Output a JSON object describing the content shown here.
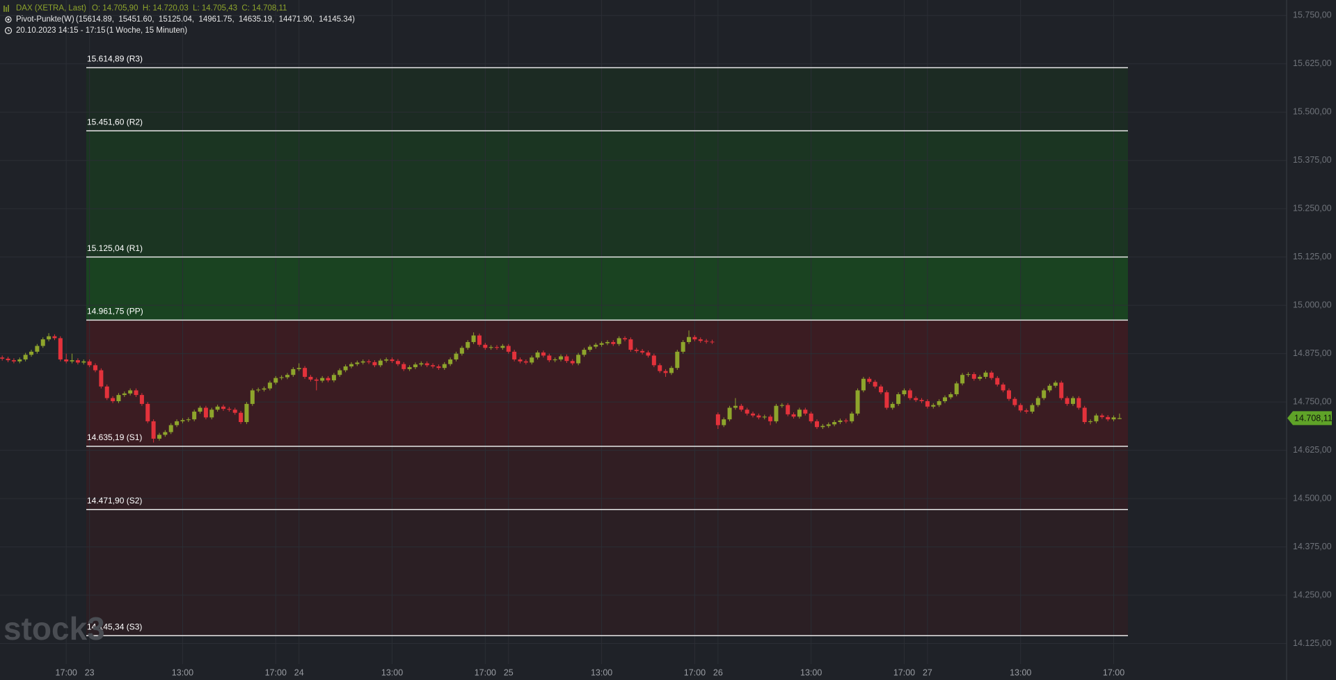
{
  "chart_data": {
    "type": "candlestick",
    "watermark": "stock3",
    "legend": {
      "symbol": "DAX (XETRA, Last)",
      "ohlc": "O: 14.705,90  H: 14.720,03  L: 14.705,43  C: 14.708,11",
      "indicator": "Pivot-Punkte(W)",
      "indicator_values": "(15614.89,  15451.60,  15125.04,  14961.75,  14635.19,  14471.90,  14145.34)",
      "period": "20.10.2023 14:15 - 17:15",
      "period_note": "(1 Woche, 15 Minuten)"
    },
    "up_color": "#8ea52c",
    "down_color": "#e3323b",
    "grid": true,
    "ylim": [
      14072,
      15790
    ],
    "yticks": [
      {
        "value": 14125,
        "label": "14.125,00"
      },
      {
        "value": 14250,
        "label": "14.250,00"
      },
      {
        "value": 14375,
        "label": "14.375,00"
      },
      {
        "value": 14500,
        "label": "14.500,00"
      },
      {
        "value": 14625,
        "label": "14.625,00"
      },
      {
        "value": 14750,
        "label": "14.750,00"
      },
      {
        "value": 14875,
        "label": "14.875,00"
      },
      {
        "value": 15000,
        "label": "15.000,00"
      },
      {
        "value": 15125,
        "label": "15.125,00"
      },
      {
        "value": 15250,
        "label": "15.250,00"
      },
      {
        "value": 15375,
        "label": "15.375,00"
      },
      {
        "value": 15500,
        "label": "15.500,00"
      },
      {
        "value": 15625,
        "label": "15.625,00"
      },
      {
        "value": 15750,
        "label": "15.750,00"
      }
    ],
    "last_price": {
      "value": 14708.11,
      "label": "14.708,11",
      "color": "#5fa328"
    },
    "pivots": [
      {
        "value": 15614.89,
        "label": "15.614,89 (R3)",
        "fill": "#1c2b23"
      },
      {
        "value": 15451.6,
        "label": "15.451,60 (R2)",
        "fill": "#1b3522"
      },
      {
        "value": 15125.04,
        "label": "15.125,04 (R1)",
        "fill": "#1a4321"
      },
      {
        "value": 14961.75,
        "label": "14.961,75 (PP)",
        "fill": "#3b1c22"
      },
      {
        "value": 14635.19,
        "label": "14.635,19 (S1)",
        "fill": "#311e23"
      },
      {
        "value": 14471.9,
        "label": "14.471,90 (S2)",
        "fill": "#2b1f24"
      },
      {
        "value": 14145.34,
        "label": "14.145,34 (S3)",
        "fill": "#2b1f24"
      }
    ],
    "categories": [
      null,
      null,
      null,
      null,
      null,
      null,
      null,
      null,
      null,
      null,
      null,
      "17:00",
      null,
      null,
      null,
      "23",
      null,
      null,
      null,
      null,
      null,
      null,
      null,
      null,
      null,
      null,
      null,
      null,
      null,
      null,
      null,
      "13:00",
      null,
      null,
      null,
      null,
      null,
      null,
      null,
      null,
      null,
      null,
      null,
      null,
      null,
      null,
      null,
      "17:00",
      null,
      null,
      null,
      "24",
      null,
      null,
      null,
      null,
      null,
      null,
      null,
      null,
      null,
      null,
      null,
      null,
      null,
      null,
      null,
      "13:00",
      null,
      null,
      null,
      null,
      null,
      null,
      null,
      null,
      null,
      null,
      null,
      null,
      null,
      null,
      null,
      "17:00",
      null,
      null,
      null,
      "25",
      null,
      null,
      null,
      null,
      null,
      null,
      null,
      null,
      null,
      null,
      null,
      null,
      null,
      null,
      null,
      "13:00",
      null,
      null,
      null,
      null,
      null,
      null,
      null,
      null,
      null,
      null,
      null,
      null,
      null,
      null,
      null,
      "17:00",
      null,
      null,
      null,
      "26",
      null,
      null,
      null,
      null,
      null,
      null,
      null,
      null,
      null,
      null,
      null,
      null,
      null,
      null,
      null,
      "13:00",
      null,
      null,
      null,
      null,
      null,
      null,
      null,
      null,
      null,
      null,
      null,
      null,
      null,
      null,
      null,
      "17:00",
      null,
      null,
      null,
      "27",
      null,
      null,
      null,
      null,
      null,
      null,
      null,
      null,
      null,
      null,
      null,
      null,
      null,
      null,
      null,
      "13:00",
      null,
      null,
      null,
      null,
      null,
      null,
      null,
      null,
      null,
      null,
      null,
      null,
      null,
      null,
      null,
      "17:00",
      null
    ],
    "open": [
      14865,
      14862,
      14858,
      14855,
      14860,
      14872,
      14880,
      14895,
      14912,
      14920,
      14915,
      14860,
      14855,
      14858,
      14852,
      14855,
      14845,
      14832,
      14790,
      14760,
      14752,
      14768,
      14772,
      14780,
      14768,
      14745,
      14700,
      14655,
      14665,
      14672,
      14690,
      14700,
      14703,
      14705,
      14725,
      14735,
      14710,
      14730,
      14738,
      14732,
      14730,
      14722,
      14698,
      14745,
      14780,
      14782,
      14785,
      14800,
      14812,
      14814,
      14820,
      14835,
      14838,
      14815,
      14808,
      14805,
      14812,
      14806,
      14820,
      14832,
      14842,
      14848,
      14852,
      14855,
      14853,
      14845,
      14857,
      14860,
      14856,
      14848,
      14835,
      14840,
      14847,
      14850,
      14845,
      14842,
      14838,
      14848,
      14860,
      14875,
      14890,
      14905,
      14922,
      14898,
      14890,
      14892,
      14890,
      14895,
      14880,
      14860,
      14855,
      14852,
      14865,
      14878,
      14870,
      14858,
      14860,
      14868,
      14856,
      14850,
      14872,
      14885,
      14893,
      14898,
      14902,
      14905,
      14900,
      14915,
      14912,
      14885,
      14882,
      14878,
      14870,
      14845,
      14830,
      14825,
      14838,
      14880,
      14905,
      14918,
      14912,
      14908,
      14906,
      14718,
      14690,
      14705,
      14735,
      14740,
      14730,
      14720,
      14715,
      14710,
      14712,
      14700,
      14740,
      14742,
      14718,
      14712,
      14730,
      14720,
      14700,
      14685,
      14688,
      14692,
      14698,
      14702,
      14700,
      14720,
      14780,
      14810,
      14802,
      14790,
      14775,
      14735,
      14745,
      14770,
      14780,
      14760,
      14755,
      14752,
      14738,
      14742,
      14752,
      14762,
      14770,
      14798,
      14820,
      14822,
      14810,
      14815,
      14826,
      14812,
      14795,
      14780,
      14758,
      14742,
      14728,
      14725,
      14742,
      14760,
      14780,
      14792,
      14800,
      14760,
      14745,
      14760,
      14735,
      14698,
      14700,
      14715,
      14711,
      14705,
      14705.9
    ],
    "high": [
      14870,
      14867,
      14863,
      14865,
      14877,
      14885,
      14900,
      14917,
      14928,
      14925,
      14920,
      14875,
      14875,
      14863,
      14860,
      14860,
      14850,
      14837,
      14795,
      14765,
      14773,
      14777,
      14785,
      14785,
      14773,
      14750,
      14705,
      14670,
      14677,
      14695,
      14705,
      14708,
      14710,
      14730,
      14740,
      14740,
      14735,
      14743,
      14743,
      14737,
      14735,
      14727,
      14750,
      14785,
      14787,
      14790,
      14805,
      14817,
      14819,
      14825,
      14840,
      14850,
      14843,
      14820,
      14813,
      14817,
      14817,
      14825,
      14837,
      14847,
      14853,
      14857,
      14860,
      14860,
      14858,
      14862,
      14865,
      14865,
      14861,
      14853,
      14845,
      14852,
      14855,
      14855,
      14850,
      14847,
      14853,
      14865,
      14880,
      14895,
      14910,
      14930,
      14927,
      14903,
      14897,
      14897,
      14900,
      14900,
      14885,
      14865,
      14860,
      14870,
      14883,
      14883,
      14875,
      14865,
      14873,
      14873,
      14861,
      14877,
      14890,
      14898,
      14903,
      14907,
      14910,
      14910,
      14920,
      14920,
      14917,
      14890,
      14887,
      14883,
      14875,
      14850,
      14835,
      14843,
      14885,
      14910,
      14935,
      14923,
      14917,
      14913,
      14911,
      14723,
      14710,
      14740,
      14760,
      14745,
      14735,
      14725,
      14720,
      14717,
      14717,
      14745,
      14747,
      14747,
      14723,
      14735,
      14735,
      14725,
      14705,
      14693,
      14697,
      14703,
      14707,
      14707,
      14725,
      14785,
      14815,
      14815,
      14807,
      14795,
      14780,
      14750,
      14775,
      14785,
      14785,
      14765,
      14760,
      14757,
      14747,
      14757,
      14767,
      14775,
      14803,
      14825,
      14827,
      14827,
      14820,
      14831,
      14831,
      14817,
      14800,
      14785,
      14763,
      14747,
      14733,
      14747,
      14765,
      14785,
      14797,
      14805,
      14805,
      14765,
      14765,
      14765,
      14740,
      14705,
      14720,
      14720,
      14716,
      14715,
      14720.03
    ],
    "low": [
      14857,
      14853,
      14850,
      14850,
      14855,
      14867,
      14875,
      14890,
      14907,
      14910,
      14855,
      14850,
      14850,
      14847,
      14847,
      14840,
      14827,
      14785,
      14755,
      14747,
      14747,
      14763,
      14767,
      14763,
      14740,
      14695,
      14645,
      14650,
      14660,
      14667,
      14685,
      14695,
      14698,
      14700,
      14720,
      14705,
      14705,
      14725,
      14727,
      14725,
      14717,
      14693,
      14693,
      14740,
      14775,
      14777,
      14780,
      14795,
      14807,
      14809,
      14815,
      14830,
      14810,
      14803,
      14780,
      14800,
      14801,
      14801,
      14815,
      14827,
      14837,
      14843,
      14847,
      14848,
      14840,
      14840,
      14852,
      14851,
      14843,
      14830,
      14830,
      14835,
      14842,
      14840,
      14837,
      14833,
      14833,
      14843,
      14855,
      14870,
      14885,
      14900,
      14893,
      14885,
      14885,
      14885,
      14885,
      14875,
      14855,
      14850,
      14847,
      14847,
      14860,
      14865,
      14853,
      14853,
      14855,
      14851,
      14845,
      14845,
      14867,
      14880,
      14888,
      14893,
      14897,
      14895,
      14895,
      14907,
      14880,
      14877,
      14873,
      14865,
      14840,
      14825,
      14815,
      14820,
      14833,
      14875,
      14900,
      14907,
      14903,
      14901,
      14900,
      14680,
      14685,
      14700,
      14730,
      14725,
      14715,
      14710,
      14705,
      14705,
      14690,
      14695,
      14735,
      14713,
      14707,
      14707,
      14715,
      14695,
      14680,
      14680,
      14683,
      14687,
      14693,
      14695,
      14695,
      14715,
      14775,
      14797,
      14785,
      14770,
      14730,
      14730,
      14740,
      14765,
      14755,
      14750,
      14747,
      14733,
      14733,
      14737,
      14747,
      14757,
      14765,
      14793,
      14815,
      14805,
      14805,
      14810,
      14807,
      14790,
      14775,
      14753,
      14737,
      14723,
      14720,
      14720,
      14737,
      14755,
      14775,
      14787,
      14755,
      14740,
      14740,
      14730,
      14693,
      14693,
      14695,
      14706,
      14700,
      14700,
      14705.43
    ],
    "close": [
      14862,
      14858,
      14855,
      14860,
      14872,
      14880,
      14895,
      14912,
      14920,
      14915,
      14860,
      14855,
      14858,
      14852,
      14855,
      14845,
      14832,
      14790,
      14760,
      14752,
      14768,
      14772,
      14780,
      14768,
      14745,
      14700,
      14655,
      14665,
      14672,
      14690,
      14700,
      14703,
      14705,
      14725,
      14735,
      14710,
      14730,
      14738,
      14732,
      14730,
      14722,
      14698,
      14745,
      14780,
      14782,
      14785,
      14800,
      14812,
      14814,
      14820,
      14835,
      14838,
      14815,
      14808,
      14805,
      14812,
      14806,
      14820,
      14832,
      14842,
      14848,
      14852,
      14855,
      14853,
      14845,
      14857,
      14860,
      14856,
      14848,
      14835,
      14840,
      14847,
      14850,
      14845,
      14842,
      14838,
      14848,
      14860,
      14875,
      14890,
      14905,
      14922,
      14898,
      14890,
      14892,
      14890,
      14895,
      14880,
      14860,
      14855,
      14852,
      14865,
      14878,
      14870,
      14858,
      14860,
      14868,
      14856,
      14850,
      14872,
      14885,
      14893,
      14898,
      14902,
      14905,
      14900,
      14915,
      14912,
      14885,
      14882,
      14878,
      14870,
      14845,
      14830,
      14825,
      14838,
      14880,
      14905,
      14918,
      14912,
      14908,
      14906,
      14905,
      14690,
      14705,
      14735,
      14740,
      14730,
      14720,
      14715,
      14710,
      14712,
      14700,
      14740,
      14742,
      14718,
      14712,
      14730,
      14720,
      14700,
      14685,
      14688,
      14692,
      14698,
      14702,
      14700,
      14720,
      14780,
      14810,
      14802,
      14790,
      14775,
      14735,
      14745,
      14770,
      14780,
      14760,
      14755,
      14752,
      14738,
      14742,
      14752,
      14762,
      14770,
      14798,
      14820,
      14822,
      14810,
      14815,
      14826,
      14812,
      14795,
      14780,
      14758,
      14742,
      14728,
      14725,
      14742,
      14760,
      14780,
      14792,
      14800,
      14760,
      14745,
      14760,
      14735,
      14698,
      14700,
      14715,
      14711,
      14705,
      14710,
      14708.11
    ]
  }
}
